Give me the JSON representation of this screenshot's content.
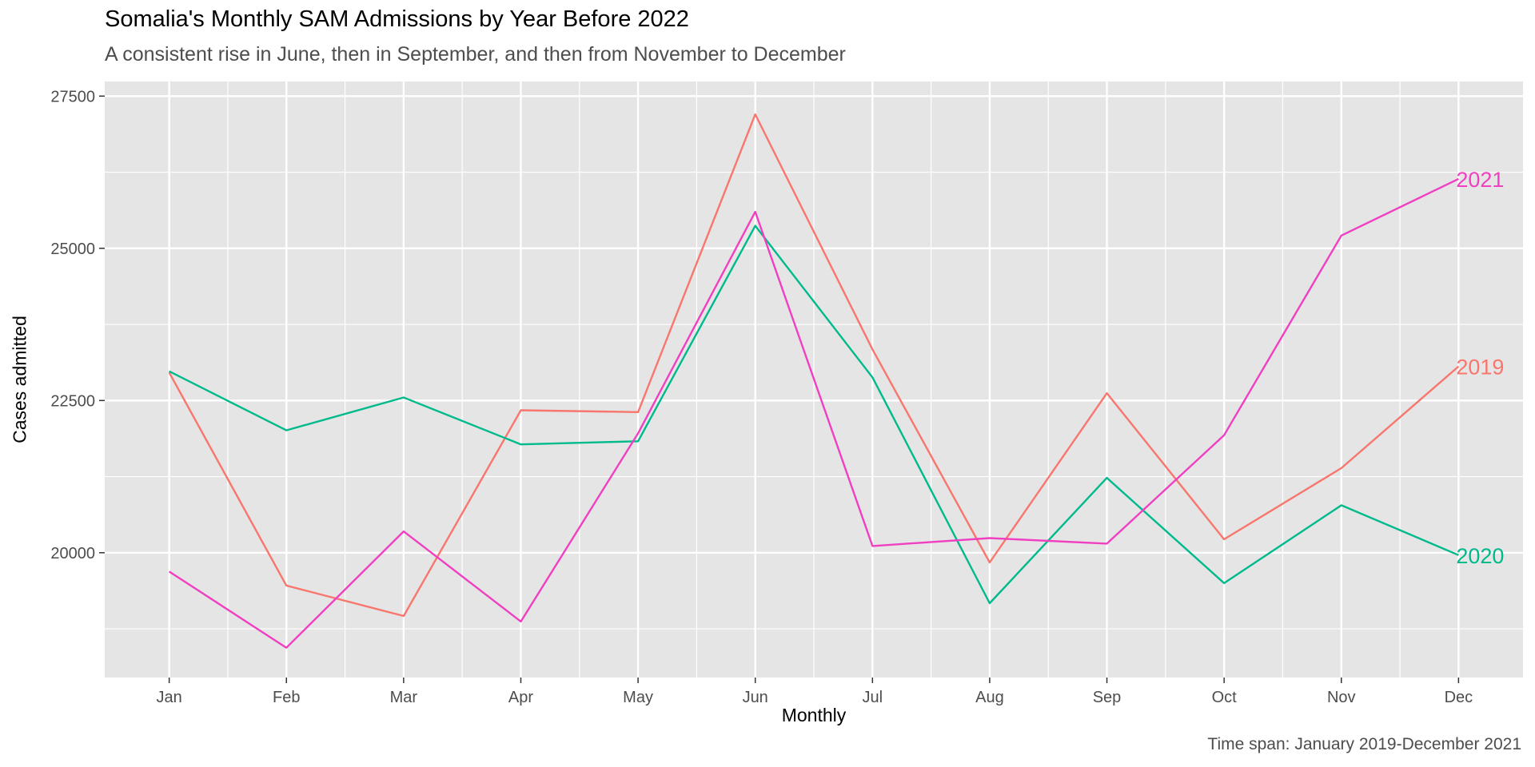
{
  "chart_data": {
    "type": "line",
    "title": "Somalia's Monthly SAM Admissions by Year Before 2022",
    "subtitle": "A consistent rise in June, then in September, and then from November to December",
    "caption": "Time span: January 2019-December 2021",
    "xlabel": "Monthly",
    "ylabel": "Cases admitted",
    "categories": [
      "Jan",
      "Feb",
      "Mar",
      "Apr",
      "May",
      "Jun",
      "Jul",
      "Aug",
      "Sep",
      "Oct",
      "Nov",
      "Dec"
    ],
    "ylim": [
      17950,
      27740
    ],
    "yticks": [
      20000,
      22500,
      25000,
      27500
    ],
    "grid": true,
    "background": "#e5e5e5",
    "legend": "direct labels at line ends",
    "series": [
      {
        "name": "2019",
        "color": "#f8766d",
        "values": [
          22960,
          19460,
          18960,
          22340,
          22310,
          27200,
          23340,
          19840,
          22620,
          20220,
          21390,
          23060
        ]
      },
      {
        "name": "2020",
        "color": "#00ba8c",
        "values": [
          22980,
          22010,
          22550,
          21780,
          21830,
          25370,
          22880,
          19170,
          21230,
          19500,
          20780,
          19960
        ]
      },
      {
        "name": "2021",
        "color": "#f03fc1",
        "values": [
          19690,
          18440,
          20350,
          18870,
          21960,
          25600,
          20110,
          20240,
          20150,
          21930,
          25210,
          26140
        ]
      }
    ]
  }
}
